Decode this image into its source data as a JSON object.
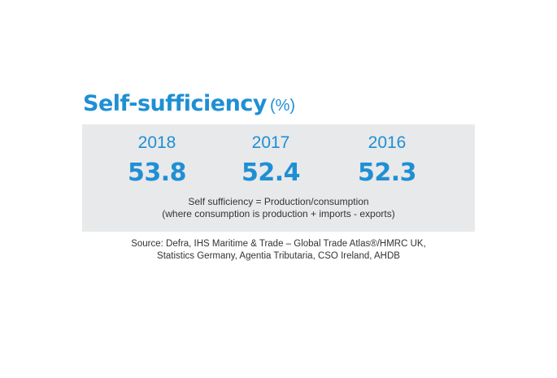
{
  "title": {
    "main": "Self-sufficiency",
    "unit": "(%)"
  },
  "stats": [
    {
      "year": "2018",
      "value": "53.8"
    },
    {
      "year": "2017",
      "value": "52.4"
    },
    {
      "year": "2016",
      "value": "52.3"
    }
  ],
  "note": {
    "line1": "Self sufficiency = Production/consumption",
    "line2": "(where consumption is production + imports - exports)"
  },
  "source": {
    "line1": "Source: Defra, IHS Maritime & Trade – Global Trade Atlas®/HMRC UK,",
    "line2": "Statistics Germany, Agentia Tributaria, CSO Ireland, AHDB"
  },
  "colors": {
    "accent": "#1f8fd4",
    "panel_background": "#e8e9ea",
    "text": "#333333"
  }
}
